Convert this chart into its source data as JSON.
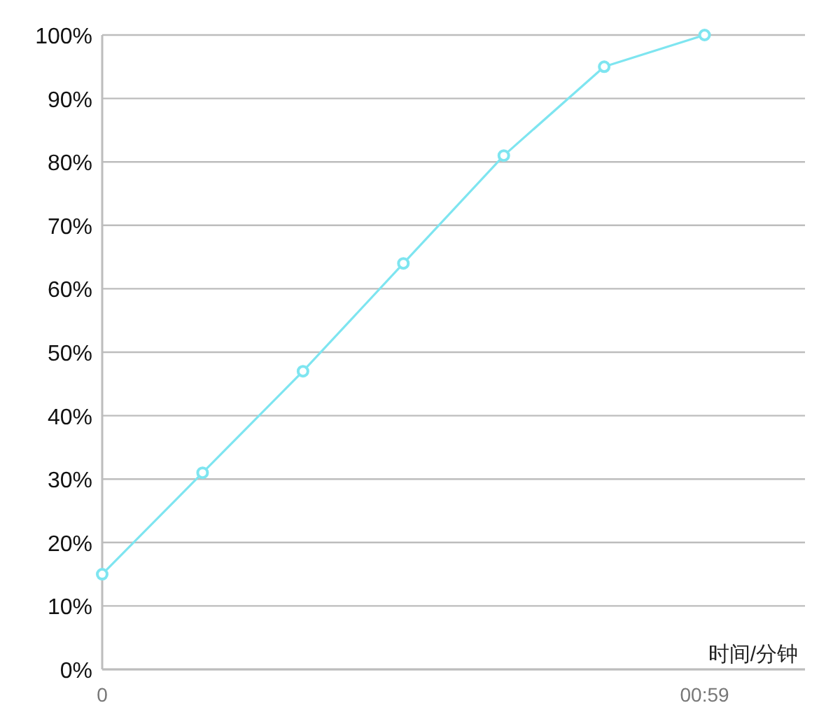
{
  "chart_data": {
    "type": "line",
    "xlabel": "时间/分钟",
    "categories": [
      "0",
      null,
      null,
      null,
      null,
      null,
      "00:59",
      null
    ],
    "series": [
      {
        "color": "#7ee5f0",
        "values": [
          15,
          31,
          47,
          64,
          81,
          95,
          100,
          null
        ]
      }
    ],
    "ylim": [
      0,
      100
    ],
    "yticks": [
      {
        "value": 0,
        "label": "0%"
      },
      {
        "value": 10,
        "label": "10%"
      },
      {
        "value": 20,
        "label": "20%"
      },
      {
        "value": 30,
        "label": "30%"
      },
      {
        "value": 40,
        "label": "40%"
      },
      {
        "value": 50,
        "label": "50%"
      },
      {
        "value": 60,
        "label": "60%"
      },
      {
        "value": 70,
        "label": "70%"
      },
      {
        "value": 80,
        "label": "80%"
      },
      {
        "value": 90,
        "label": "90%"
      },
      {
        "value": 100,
        "label": "100%"
      }
    ],
    "grid": "y",
    "marker": "circle",
    "line_style": "solid"
  }
}
